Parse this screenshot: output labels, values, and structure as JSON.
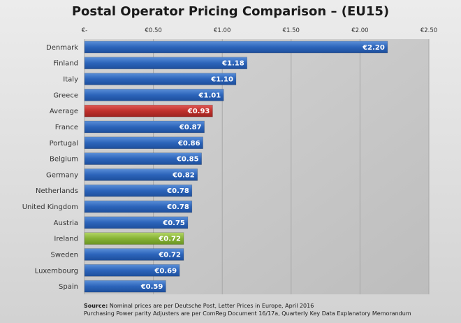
{
  "chart_data": {
    "type": "bar",
    "orientation": "horizontal",
    "title": "Postal Operator Pricing Comparison – (EU15)",
    "xlabel": "",
    "ylabel": "",
    "xlim": [
      0,
      2.5
    ],
    "grid": true,
    "x_tick_labels": [
      "€-",
      "€0.50",
      "€1.00",
      "€1.50",
      "€2.00",
      "€2.50"
    ],
    "x_ticks": [
      0,
      0.5,
      1.0,
      1.5,
      2.0,
      2.5
    ],
    "categories": [
      "Denmark",
      "Finland",
      "Italy",
      "Greece",
      "Average",
      "France",
      "Portugal",
      "Belgium",
      "Germany",
      "Netherlands",
      "United Kingdom",
      "Austria",
      "Ireland",
      "Sweden",
      "Luxembourg",
      "Spain"
    ],
    "values": [
      2.2,
      1.18,
      1.1,
      1.01,
      0.93,
      0.87,
      0.86,
      0.85,
      0.82,
      0.78,
      0.78,
      0.75,
      0.72,
      0.72,
      0.69,
      0.59
    ],
    "data_labels": [
      "€2.20",
      "€1.18",
      "€1.10",
      "€1.01",
      "€0.93",
      "€0.87",
      "€0.86",
      "€0.85",
      "€0.82",
      "€0.78",
      "€0.78",
      "€0.75",
      "€0.72",
      "€0.72",
      "€0.69",
      "€0.59"
    ],
    "bar_kind": [
      "normal",
      "normal",
      "normal",
      "normal",
      "average",
      "normal",
      "normal",
      "normal",
      "normal",
      "normal",
      "normal",
      "normal",
      "highlight",
      "normal",
      "normal",
      "normal"
    ],
    "colors": {
      "normal": "#2a61b8",
      "average": "#c0302c",
      "highlight": "#86b234",
      "plot_background": "#c4c4c4",
      "grid": "#a8a8a8"
    }
  },
  "source": {
    "label": "Source:",
    "line1": "Nominal prices are per Deutsche Post, Letter Prices in Europe, April 2016",
    "line2": "Purchasing Power parity Adjusters are per ComReg Document 16/17a, Quarterly Key Data Explanatory Memorandum"
  }
}
